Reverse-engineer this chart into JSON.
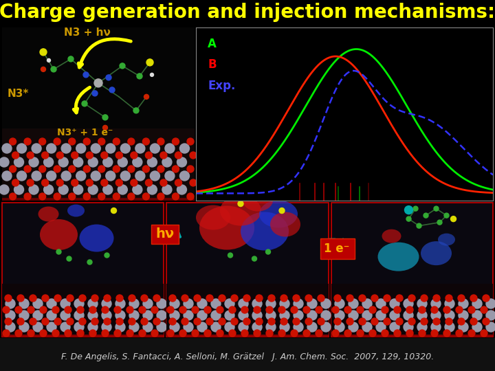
{
  "title": "Charge generation and injection mechanisms:",
  "title_color": "#FFFF00",
  "title_fontsize": 20,
  "bg_color": "#000000",
  "citation": "F. De Angelis, S. Fantacci, A. Selloni, M. Grätzel   J. Am. Chem. Soc.  2007, 129, 10320.",
  "citation_color": "#CCCCCC",
  "citation_fontsize": 9,
  "label_N3_hv": "N3 + hν",
  "label_N3star": "N3*",
  "label_N3plus": "N3⁺ + 1 e⁻",
  "label_hv": "hν",
  "label_1e": "1 e⁻",
  "legend_A": "A",
  "legend_B": "B",
  "legend_Exp": "Exp.",
  "legend_color_A": "#00FF00",
  "legend_color_B": "#FF0000",
  "legend_color_Exp": "#4444FF",
  "curve_A_color": "#00EE00",
  "curve_B_color": "#FF2200",
  "curve_Exp_color": "#3333FF",
  "hv_box_color": "#CC0000",
  "hv_text_color": "#FFAA00",
  "e_box_color": "#CC0000",
  "e_text_color": "#FFAA00"
}
